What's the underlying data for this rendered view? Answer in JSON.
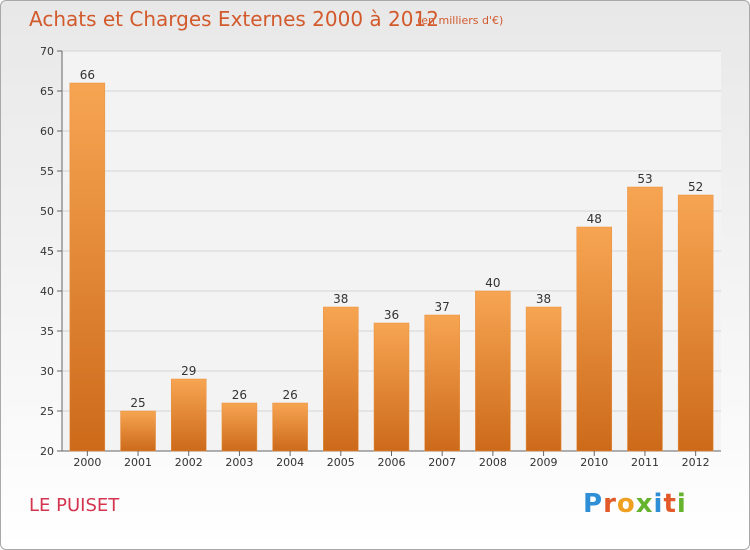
{
  "chart_data": {
    "type": "bar",
    "title": "Achats et Charges Externes 2000 à 2012",
    "subtitle": "(en milliers d'€)",
    "categories": [
      "2000",
      "2001",
      "2002",
      "2003",
      "2004",
      "2005",
      "2006",
      "2007",
      "2008",
      "2009",
      "2010",
      "2011",
      "2012"
    ],
    "values": [
      66,
      25,
      29,
      26,
      26,
      38,
      36,
      37,
      40,
      38,
      48,
      53,
      52
    ],
    "ylim": [
      20,
      70
    ],
    "yticks": [
      20,
      25,
      30,
      35,
      40,
      45,
      50,
      55,
      60,
      65,
      70
    ],
    "xlabel": "",
    "ylabel": "",
    "grid": true,
    "bar_color_top": "#f7a552",
    "bar_color_bottom": "#cc6a1a"
  },
  "commune": "LE PUISET",
  "logo": {
    "letters": [
      "P",
      "r",
      "o",
      "x",
      "i",
      "t",
      "i"
    ],
    "colors": [
      "#2f8fd6",
      "#e35a2a",
      "#f0a020",
      "#66b32e",
      "#2f8fd6",
      "#e35a2a",
      "#66b32e"
    ]
  }
}
